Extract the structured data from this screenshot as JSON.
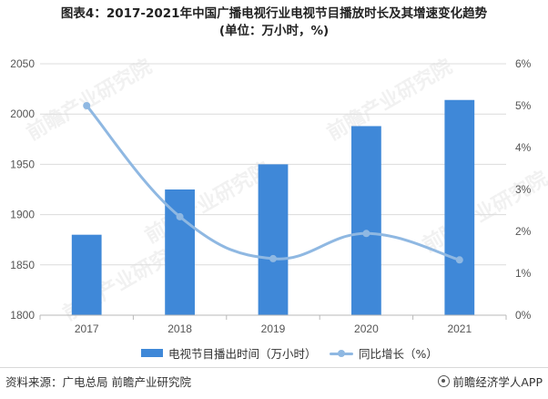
{
  "title_lines": [
    "图表4：2017-2021年中国广播电视行业电视节目播放时长及其增速变化趋势",
    "(单位：万小时，%)"
  ],
  "colors": {
    "bar": "#3f88d8",
    "line": "#8fb8e2",
    "grid": "#dcdcdc",
    "axis": "#b8b8b8"
  },
  "watermark_text": "前瞻产业研究院",
  "chart_data": {
    "type": "bar",
    "title": "图表4：2017-2021年中国广播电视行业电视节目播放时长及其增速变化趋势 (单位：万小时，%)",
    "categories": [
      "2017",
      "2018",
      "2019",
      "2020",
      "2021"
    ],
    "series": [
      {
        "name": "电视节目播出时间（万小时）",
        "type": "bar",
        "axis": "left",
        "values": [
          1880,
          1925,
          1950,
          1988,
          2014
        ]
      },
      {
        "name": "同比增长（%）",
        "type": "line",
        "axis": "right",
        "values": [
          5.0,
          2.35,
          1.35,
          1.95,
          1.32
        ]
      }
    ],
    "y_left": {
      "min": 1800,
      "max": 2050,
      "ticks": [
        "1800",
        "1850",
        "1900",
        "1950",
        "2000",
        "2050"
      ]
    },
    "y_right": {
      "min": 0,
      "max": 6,
      "ticks": [
        "0%",
        "1%",
        "2%",
        "3%",
        "4%",
        "5%",
        "6%"
      ]
    },
    "grid": true,
    "legend_position": "bottom"
  },
  "legend": {
    "bar_label": "电视节目播出时间（万小时）",
    "line_label": "同比增长（%）"
  },
  "footer": {
    "source": "资料来源：广电总局 前瞻产业研究院",
    "brand": "前瞻经济学人APP"
  }
}
